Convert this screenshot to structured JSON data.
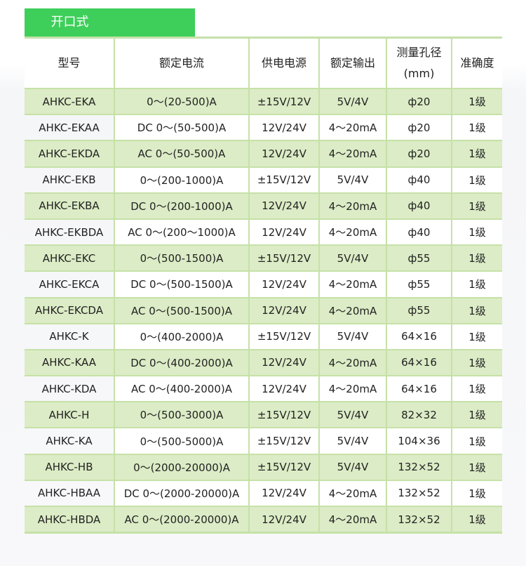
{
  "title": "开口式",
  "colors": {
    "accent": "#3ecf5a",
    "row_alt": "#dcecc6",
    "border": "#c6e1a8"
  },
  "headers": [
    "型号",
    "额定电流",
    "供电电源",
    "额定输出",
    "测量孔径",
    "(mm)",
    "准确度"
  ],
  "rows": [
    [
      "AHKC-EKA",
      "0～(20-500)A",
      "±15V/12V",
      "5V/4V",
      "ф20",
      "1级"
    ],
    [
      "AHKC-EKAA",
      "DC 0～(50-500)A",
      "12V/24V",
      "4～20mA",
      "ф20",
      "1级"
    ],
    [
      "AHKC-EKDA",
      "AC 0～(50-500)A",
      "12V/24V",
      "4～20mA",
      "ф20",
      "1级"
    ],
    [
      "AHKC-EKB",
      "0～(200-1000)A",
      "±15V/12V",
      "5V/4V",
      "ф40",
      "1级"
    ],
    [
      "AHKC-EKBA",
      "DC 0～(200-1000)A",
      "12V/24V",
      "4～20mA",
      "ф40",
      "1级"
    ],
    [
      "AHKC-EKBDA",
      "AC 0～(200～1000)A",
      "12V/24V",
      "4～20mA",
      "ф40",
      "1级"
    ],
    [
      "AHKC-EKC",
      "0～(500-1500)A",
      "±15V/12V",
      "5V/4V",
      "ф55",
      "1级"
    ],
    [
      "AHKC-EKCA",
      "DC 0～(500-1500)A",
      "12V/24V",
      "4～20mA",
      "ф55",
      "1级"
    ],
    [
      "AHKC-EKCDA",
      "AC 0～(500-1500)A",
      "12V/24V",
      "4～20mA",
      "ф55",
      "1级"
    ],
    [
      "AHKC-K",
      "0～(400-2000)A",
      "±15V/12V",
      "5V/4V",
      "64×16",
      "1级"
    ],
    [
      "AHKC-KAA",
      "DC 0～(400-2000)A",
      "12V/24V",
      "4～20mA",
      "64×16",
      "1级"
    ],
    [
      "AHKC-KDA",
      "AC 0～(400-2000)A",
      "12V/24V",
      "4～20mA",
      "64×16",
      "1级"
    ],
    [
      "AHKC-H",
      "0～(500-3000)A",
      "±15V/12V",
      "5V/4V",
      "82×32",
      "1级"
    ],
    [
      "AHKC-KA",
      "0～(500-5000)A",
      "±15V/12V",
      "5V/4V",
      "104×36",
      "1级"
    ],
    [
      "AHKC-HB",
      "0～(2000-20000)A",
      "±15V/12V",
      "5V/4V",
      "132×52",
      "1级"
    ],
    [
      "AHKC-HBAA",
      "DC 0～(2000-20000)A",
      "12V/24V",
      "4～20mA",
      "132×52",
      "1级"
    ],
    [
      "AHKC-HBDA",
      "AC 0～(2000-20000)A",
      "12V/24V",
      "4～20mA",
      "132×52",
      "1级"
    ]
  ]
}
